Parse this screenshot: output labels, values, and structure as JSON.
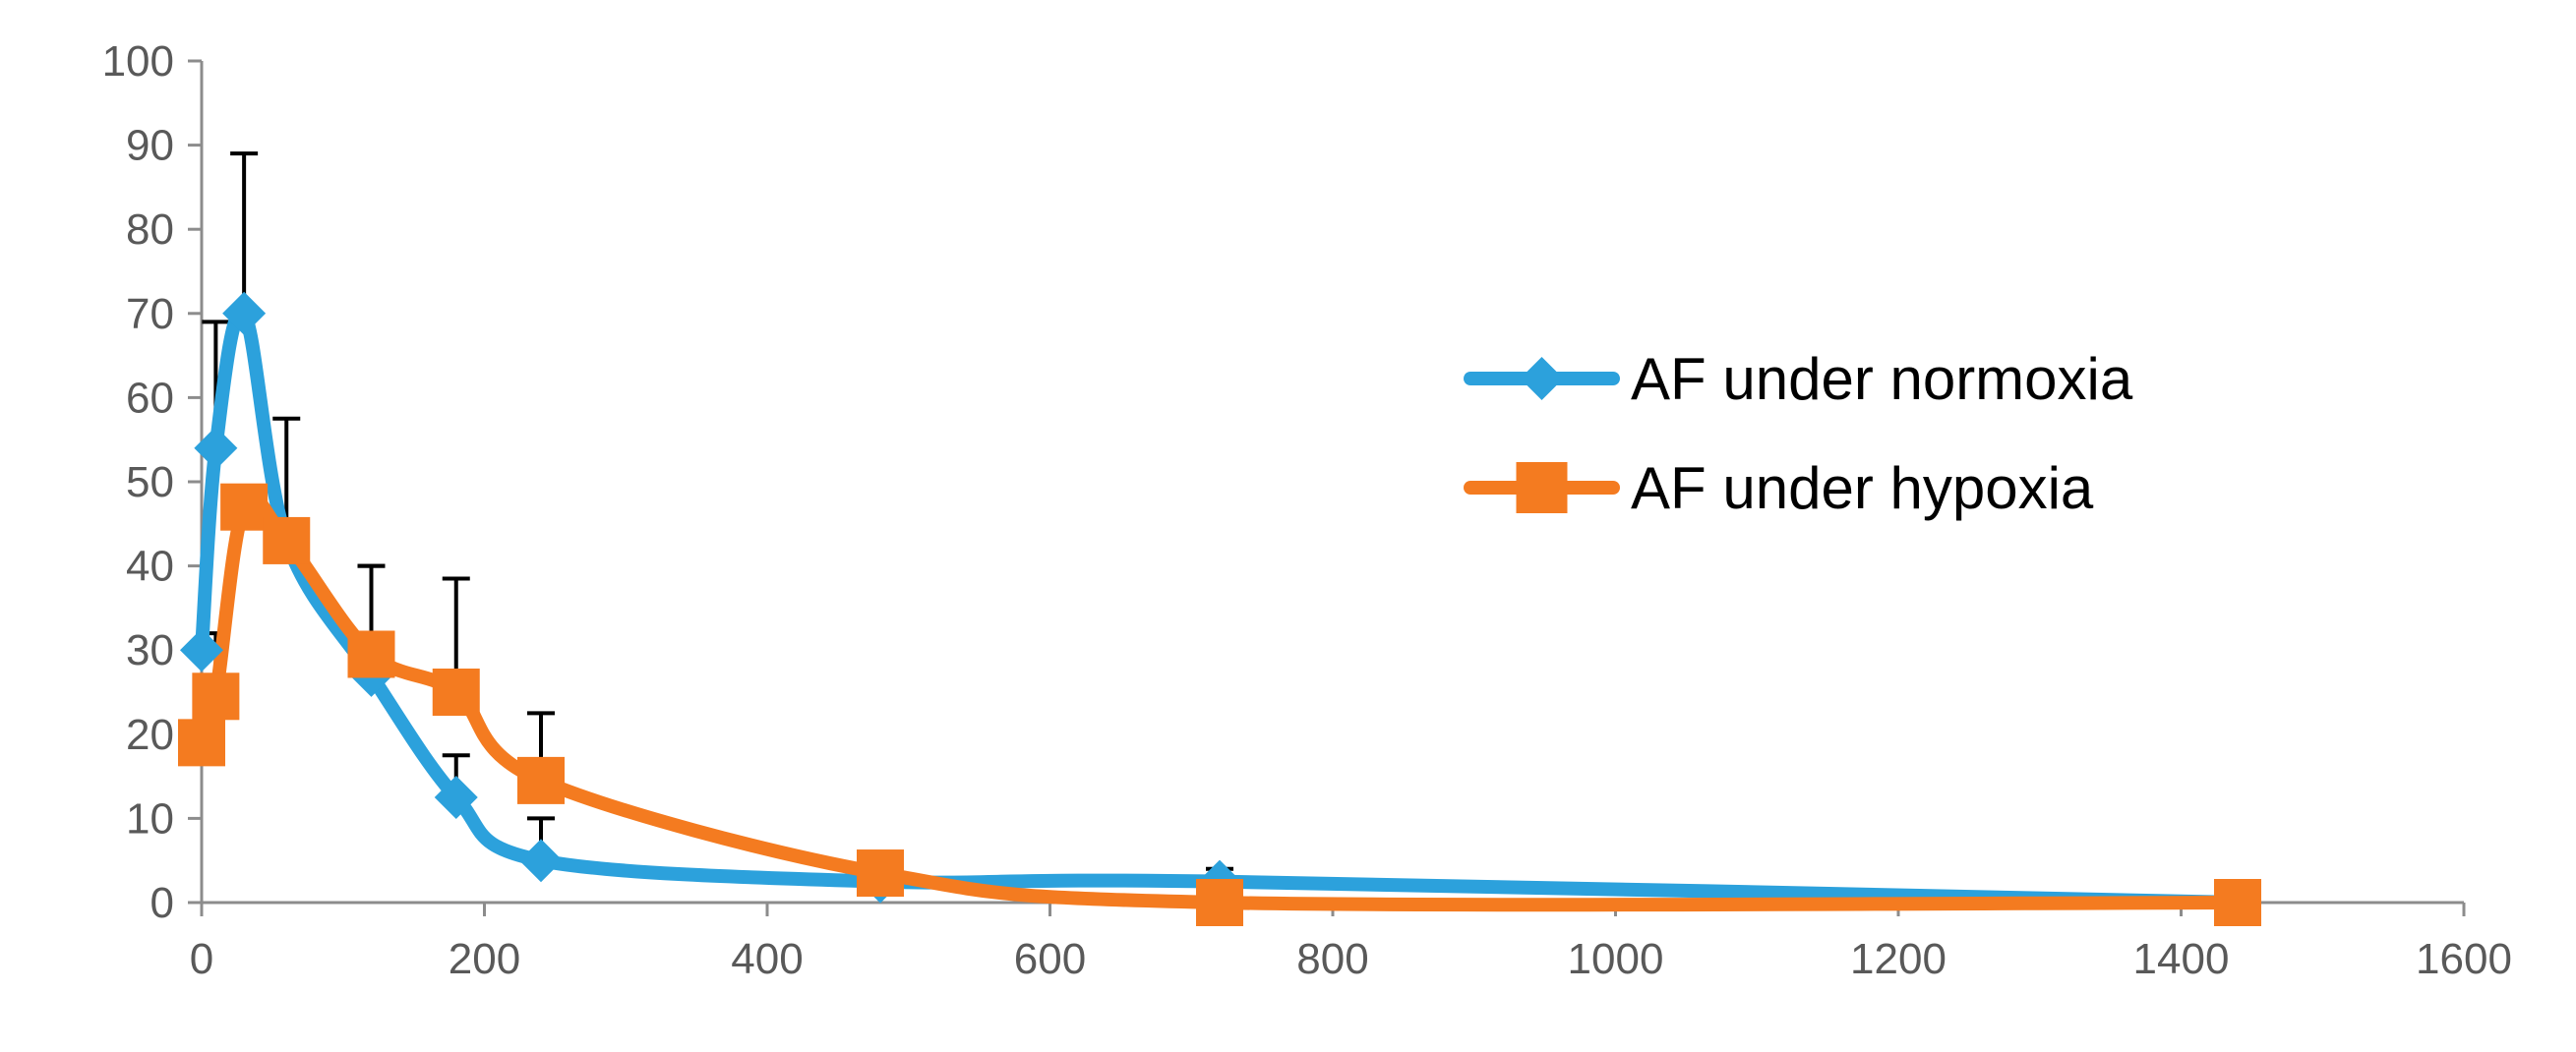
{
  "chart_data": {
    "type": "line",
    "title": "",
    "xlabel": "",
    "ylabel": "",
    "xlim": [
      0,
      1600
    ],
    "ylim": [
      0,
      100
    ],
    "xticks": [
      0,
      200,
      400,
      600,
      800,
      1000,
      1200,
      1400,
      1600
    ],
    "yticks": [
      0,
      10,
      20,
      30,
      40,
      50,
      60,
      70,
      80,
      90,
      100
    ],
    "grid": false,
    "legend_position": "right",
    "series": [
      {
        "name": "AF under normoxia",
        "color": "#2ca1dc",
        "marker": "diamond",
        "x": [
          0,
          10,
          30,
          60,
          120,
          180,
          240,
          480,
          720,
          1440
        ],
        "y": [
          30,
          54,
          70,
          43,
          27,
          12.5,
          5,
          2.5,
          2.5,
          0
        ],
        "error": [
          0,
          15,
          19,
          14.5,
          13,
          5,
          5,
          0,
          1.5,
          0
        ]
      },
      {
        "name": "AF under hypoxia",
        "color": "#f47b20",
        "marker": "square",
        "x": [
          0,
          10,
          30,
          60,
          120,
          180,
          240,
          480,
          720,
          1440
        ],
        "y": [
          19,
          24.5,
          47,
          43,
          29.5,
          25,
          14.5,
          3.5,
          0,
          0
        ],
        "error": [
          0,
          7.5,
          0,
          0,
          10.5,
          13.5,
          8,
          0,
          0,
          0
        ]
      }
    ]
  }
}
